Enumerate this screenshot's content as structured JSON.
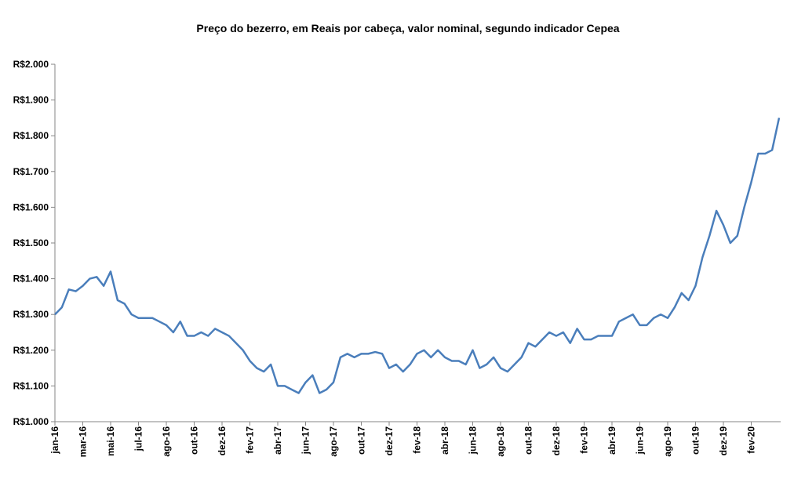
{
  "chart_data": {
    "type": "line",
    "title": "Preço do bezerro,  em Reais por cabeça, valor nominal, segundo indicador Cepea",
    "categories": [
      "jan-16",
      null,
      null,
      null,
      "mar-16",
      null,
      null,
      null,
      "mai-16",
      null,
      null,
      null,
      "jul-16",
      null,
      null,
      null,
      "ago-16",
      null,
      null,
      null,
      "out-16",
      null,
      null,
      null,
      "dez-16",
      null,
      null,
      null,
      "fev-17",
      null,
      null,
      null,
      "abr-17",
      null,
      null,
      null,
      "jun-17",
      null,
      null,
      null,
      "ago-17",
      null,
      null,
      null,
      "out-17",
      null,
      null,
      null,
      "dez-17",
      null,
      null,
      null,
      "fev-18",
      null,
      null,
      null,
      "abr-18",
      null,
      null,
      null,
      "jun-18",
      null,
      null,
      null,
      "ago-18",
      null,
      null,
      null,
      "out-18",
      null,
      null,
      null,
      "dez-18",
      null,
      null,
      null,
      "fev-19",
      null,
      null,
      null,
      "abr-19",
      null,
      null,
      null,
      "jun-19",
      null,
      null,
      null,
      "ago-19",
      null,
      null,
      null,
      "out-19",
      null,
      null,
      null,
      "dez-19",
      null,
      null,
      null,
      "fev-20",
      null,
      null,
      null,
      null
    ],
    "series": [
      {
        "color": "#4a7ebb",
        "values": [
          1300,
          1320,
          1370,
          1365,
          1380,
          1400,
          1405,
          1380,
          1420,
          1340,
          1330,
          1300,
          1290,
          1290,
          1290,
          1280,
          1270,
          1250,
          1280,
          1240,
          1240,
          1250,
          1240,
          1260,
          1250,
          1240,
          1220,
          1200,
          1170,
          1150,
          1140,
          1160,
          1100,
          1100,
          1090,
          1080,
          1110,
          1130,
          1080,
          1090,
          1110,
          1180,
          1190,
          1180,
          1190,
          1190,
          1195,
          1190,
          1150,
          1160,
          1140,
          1160,
          1190,
          1200,
          1180,
          1200,
          1180,
          1170,
          1170,
          1160,
          1200,
          1150,
          1160,
          1180,
          1150,
          1140,
          1160,
          1180,
          1220,
          1210,
          1230,
          1250,
          1240,
          1250,
          1220,
          1260,
          1230,
          1230,
          1240,
          1240,
          1240,
          1280,
          1290,
          1300,
          1270,
          1270,
          1290,
          1300,
          1290,
          1320,
          1360,
          1340,
          1380,
          1460,
          1520,
          1590,
          1550,
          1500,
          1520,
          1600,
          1670,
          1750,
          1750,
          1760,
          1850
        ]
      }
    ],
    "ylim": [
      1000,
      2000
    ],
    "yticks": [
      {
        "value": 1000,
        "label": "R$1.000"
      },
      {
        "value": 1100,
        "label": "R$1.100"
      },
      {
        "value": 1200,
        "label": "R$1.200"
      },
      {
        "value": 1300,
        "label": "R$1.300"
      },
      {
        "value": 1400,
        "label": "R$1.400"
      },
      {
        "value": 1500,
        "label": "R$1.500"
      },
      {
        "value": 1600,
        "label": "R$1.600"
      },
      {
        "value": 1700,
        "label": "R$1.700"
      },
      {
        "value": 1800,
        "label": "R$1.800"
      },
      {
        "value": 1900,
        "label": "R$1.900"
      },
      {
        "value": 2000,
        "label": "R$2.000"
      }
    ],
    "grid": false
  }
}
